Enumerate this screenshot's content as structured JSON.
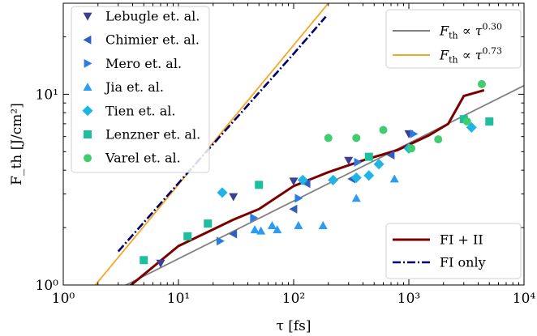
{
  "chart_data": {
    "type": "scatter",
    "xscale": "log",
    "yscale": "log",
    "xlim": [
      1,
      10000
    ],
    "ylim": [
      1,
      30
    ],
    "xlabel": "τ [fs]",
    "ylabel": "F_th [J/cm²]",
    "x_ticks": [
      {
        "value": 1,
        "label": "10⁰"
      },
      {
        "value": 10,
        "label": "10¹"
      },
      {
        "value": 100,
        "label": "10²"
      },
      {
        "value": 1000,
        "label": "10³"
      },
      {
        "value": 10000,
        "label": "10⁴"
      }
    ],
    "y_ticks": [
      {
        "value": 1,
        "label": "10⁰"
      },
      {
        "value": 10,
        "label": "10¹"
      }
    ],
    "grid": false,
    "legend_top_left": "upper-left",
    "legend_top_right": "upper-right",
    "legend_bottom_right": "lower-right",
    "scatter_series": [
      {
        "name": "Lebugle et. al.",
        "marker": "triangle-down",
        "color": "#3a3f8f",
        "points": [
          [
            7,
            1.3
          ],
          [
            30,
            2.9
          ],
          [
            100,
            3.5
          ],
          [
            300,
            4.5
          ],
          [
            1000,
            6.2
          ]
        ]
      },
      {
        "name": "Chimier et. al.",
        "marker": "triangle-left",
        "color": "#2f5fbf",
        "points": [
          [
            30,
            1.85
          ],
          [
            100,
            2.5
          ],
          [
            130,
            3.4
          ],
          [
            320,
            3.6
          ],
          [
            700,
            4.8
          ]
        ]
      },
      {
        "name": "Mero et. al.",
        "marker": "triangle-right",
        "color": "#2a7de0",
        "points": [
          [
            23,
            1.7
          ],
          [
            45,
            2.25
          ],
          [
            110,
            2.85
          ],
          [
            360,
            4.4
          ],
          [
            1100,
            6.2
          ]
        ]
      },
      {
        "name": "Jia et. al.",
        "marker": "triangle-up",
        "color": "#2c9cf2",
        "points": [
          [
            46,
            1.95
          ],
          [
            52,
            1.92
          ],
          [
            65,
            2.05
          ],
          [
            72,
            1.95
          ],
          [
            110,
            2.05
          ],
          [
            180,
            2.05
          ],
          [
            350,
            2.85
          ],
          [
            750,
            3.6
          ]
        ]
      },
      {
        "name": "Tien et. al.",
        "marker": "diamond",
        "color": "#1fb4e6",
        "points": [
          [
            24,
            3.05
          ],
          [
            120,
            3.55
          ],
          [
            220,
            3.55
          ],
          [
            350,
            3.65
          ],
          [
            450,
            3.75
          ],
          [
            550,
            4.3
          ],
          [
            1000,
            5.2
          ],
          [
            3500,
            6.7
          ]
        ]
      },
      {
        "name": "Lenzner et. al.",
        "marker": "square",
        "color": "#1ebf9f",
        "points": [
          [
            5,
            1.35
          ],
          [
            12,
            1.8
          ],
          [
            18,
            2.1
          ],
          [
            50,
            3.35
          ],
          [
            450,
            4.7
          ],
          [
            3000,
            7.4
          ],
          [
            5000,
            7.2
          ]
        ]
      },
      {
        "name": "Varel et. al.",
        "marker": "circle",
        "color": "#3fcd70",
        "points": [
          [
            200,
            5.9
          ],
          [
            350,
            5.9
          ],
          [
            600,
            6.5
          ],
          [
            1050,
            5.2
          ],
          [
            1800,
            5.8
          ],
          [
            3200,
            7.2
          ],
          [
            4300,
            11.3
          ]
        ]
      }
    ],
    "line_series": [
      {
        "name": "FI + II",
        "style": "solid",
        "color": "#7a0000",
        "points": [
          [
            3.5,
            0.95
          ],
          [
            10,
            1.6
          ],
          [
            30,
            2.2
          ],
          [
            50,
            2.5
          ],
          [
            100,
            3.3
          ],
          [
            200,
            3.9
          ],
          [
            400,
            4.5
          ],
          [
            800,
            5.1
          ],
          [
            1500,
            6.1
          ],
          [
            2200,
            7.0
          ],
          [
            3000,
            9.8
          ],
          [
            4500,
            10.5
          ]
        ]
      },
      {
        "name": "FI only",
        "style": "dashdot",
        "color": "#00006e",
        "points": [
          [
            3,
            1.5
          ],
          [
            11,
            3.65
          ],
          [
            100,
            16.3
          ],
          [
            190,
            25.5
          ]
        ]
      }
    ],
    "fit_lines": [
      {
        "label_base": "F",
        "label_sub": "th",
        "label_mid": " ∝ τ",
        "label_exp": "0.30",
        "color": "#808080",
        "points": [
          [
            3.5,
            1.0
          ],
          [
            10000,
            11.1
          ]
        ]
      },
      {
        "label_base": "F",
        "label_sub": "th",
        "label_mid": " ∝ τ",
        "label_exp": "0.73",
        "color": "#f5a623",
        "points": [
          [
            1.9,
            1.0
          ],
          [
            200,
            30
          ]
        ]
      }
    ]
  }
}
